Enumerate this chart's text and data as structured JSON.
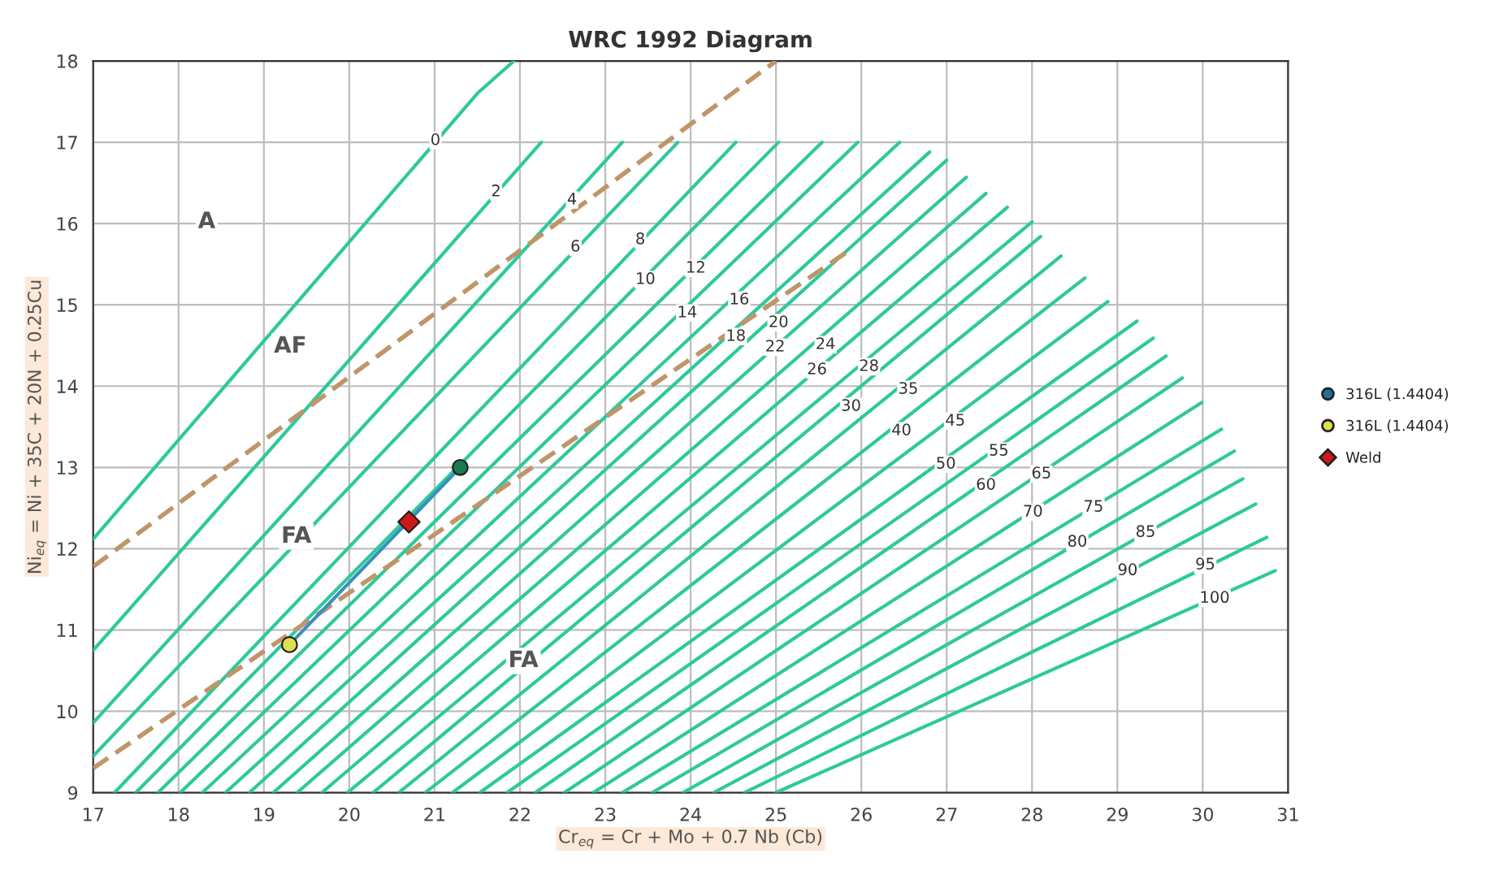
{
  "chart_data": {
    "type": "line",
    "title": "WRC 1992 Diagram",
    "xlabel": "Cr$_{eq}$ = Cr + Mo + 0.7 Nb (Cb)",
    "ylabel": "Ni$_{eq}$ = Ni + 35C + 20N + 0.25Cu",
    "xlim": [
      17,
      31
    ],
    "ylim": [
      9,
      18
    ],
    "xticks": [
      17,
      18,
      19,
      20,
      21,
      22,
      23,
      24,
      25,
      26,
      27,
      28,
      29,
      30,
      31
    ],
    "yticks": [
      9,
      10,
      11,
      12,
      13,
      14,
      15,
      16,
      17,
      18
    ],
    "grid": true,
    "legend": "right",
    "series": [
      {
        "type": "line",
        "color": "#2ec99a",
        "x": [
          17,
          21.5,
          21.93
        ],
        "values": [
          12.12,
          17.6,
          18
        ]
      },
      {
        "type": "line",
        "color": "#2ec99a",
        "x": [
          17,
          22.25
        ],
        "values": [
          10.75,
          17
        ]
      },
      {
        "type": "line",
        "color": "#2ec99a",
        "x": [
          17,
          23.2
        ],
        "values": [
          9.86,
          17
        ]
      },
      {
        "type": "line",
        "color": "#2ec99a",
        "x": [
          17,
          23.85
        ],
        "values": [
          9.45,
          17
        ]
      },
      {
        "type": "line",
        "color": "#2ec99a",
        "x": [
          17.25,
          24.53
        ],
        "values": [
          9,
          17
        ]
      },
      {
        "type": "line",
        "color": "#2ec99a",
        "x": [
          17.5,
          25.03
        ],
        "values": [
          9,
          17
        ]
      },
      {
        "type": "line",
        "color": "#2ec99a",
        "x": [
          17.76,
          25.54
        ],
        "values": [
          9,
          17
        ]
      },
      {
        "type": "line",
        "color": "#2ec99a",
        "x": [
          18.02,
          25.96
        ],
        "values": [
          9,
          17
        ]
      },
      {
        "type": "line",
        "color": "#2ec99a",
        "x": [
          18.28,
          26.45
        ],
        "values": [
          9,
          17
        ]
      },
      {
        "type": "line",
        "color": "#2ec99a",
        "x": [
          18.55,
          26.8
        ],
        "values": [
          9,
          16.88
        ]
      },
      {
        "type": "line",
        "color": "#2ec99a",
        "x": [
          18.83,
          27.0
        ],
        "values": [
          9,
          16.78
        ]
      },
      {
        "type": "line",
        "color": "#2ec99a",
        "x": [
          19.11,
          27.23
        ],
        "values": [
          9,
          16.57
        ]
      },
      {
        "type": "line",
        "color": "#2ec99a",
        "x": [
          19.39,
          27.46
        ],
        "values": [
          9,
          16.37
        ]
      },
      {
        "type": "line",
        "color": "#2ec99a",
        "x": [
          19.68,
          27.71
        ],
        "values": [
          9,
          16.2
        ]
      },
      {
        "type": "line",
        "color": "#2ec99a",
        "x": [
          19.98,
          28.0
        ],
        "values": [
          9,
          16.02
        ]
      },
      {
        "type": "line",
        "color": "#2ec99a",
        "x": [
          20.28,
          28.1
        ],
        "values": [
          9,
          15.84
        ]
      },
      {
        "type": "line",
        "color": "#2ec99a",
        "x": [
          20.58,
          28.34
        ],
        "values": [
          9,
          15.6
        ]
      },
      {
        "type": "line",
        "color": "#2ec99a",
        "x": [
          20.89,
          28.62
        ],
        "values": [
          9,
          15.33
        ]
      },
      {
        "type": "line",
        "color": "#2ec99a",
        "x": [
          21.21,
          28.89
        ],
        "values": [
          9,
          15.04
        ]
      },
      {
        "type": "line",
        "color": "#2ec99a",
        "x": [
          21.53,
          29.23
        ],
        "values": [
          9,
          14.8
        ]
      },
      {
        "type": "line",
        "color": "#2ec99a",
        "x": [
          21.85,
          29.42
        ],
        "values": [
          9,
          14.59
        ]
      },
      {
        "type": "line",
        "color": "#2ec99a",
        "x": [
          22.18,
          29.57
        ],
        "values": [
          9,
          14.37
        ]
      },
      {
        "type": "line",
        "color": "#2ec99a",
        "x": [
          22.52,
          29.76
        ],
        "values": [
          9,
          14.1
        ]
      },
      {
        "type": "line",
        "color": "#2ec99a",
        "x": [
          22.86,
          29.99
        ],
        "values": [
          9,
          13.8
        ]
      },
      {
        "type": "line",
        "color": "#2ec99a",
        "x": [
          23.2,
          30.22
        ],
        "values": [
          9,
          13.47
        ]
      },
      {
        "type": "line",
        "color": "#2ec99a",
        "x": [
          23.55,
          30.37
        ],
        "values": [
          9,
          13.2
        ]
      },
      {
        "type": "line",
        "color": "#2ec99a",
        "x": [
          23.91,
          30.47
        ],
        "values": [
          9,
          12.86
        ]
      },
      {
        "type": "line",
        "color": "#2ec99a",
        "x": [
          24.27,
          30.62
        ],
        "values": [
          9,
          12.55
        ]
      },
      {
        "type": "line",
        "color": "#2ec99a",
        "x": [
          24.63,
          30.75
        ],
        "values": [
          9,
          12.14
        ]
      },
      {
        "type": "line",
        "color": "#2ec99a",
        "x": [
          25.0,
          30.85
        ],
        "values": [
          9,
          11.73
        ]
      },
      {
        "type": "line",
        "color": "#c0956a",
        "line_style": "dashed",
        "x": [
          17,
          25
        ],
        "values": [
          11.78,
          18
        ]
      },
      {
        "type": "line",
        "color": "#c0956a",
        "line_style": "dashed",
        "x": [
          17,
          25.9
        ],
        "values": [
          9.3,
          15.7
        ]
      },
      {
        "type": "line",
        "color": "#3a8fc0",
        "x": [
          19.3,
          21.3
        ],
        "values": [
          10.82,
          13.0
        ]
      },
      {
        "type": "scatter",
        "name": "316L (1.4404)",
        "color": "#1f6fa0",
        "marker": "circle",
        "values": [
          null
        ]
      },
      {
        "type": "scatter",
        "name": "316L (1.4404)",
        "color": "#e0e050",
        "marker": "circle",
        "x": [
          19.3
        ],
        "values": [
          10.82
        ]
      },
      {
        "type": "scatter",
        "color": "#1a7a50",
        "marker": "circle",
        "x": [
          21.3
        ],
        "values": [
          13.0
        ]
      },
      {
        "type": "scatter",
        "name": "Weld",
        "color": "#d01818",
        "marker": "diamond",
        "x": [
          20.7
        ],
        "values": [
          12.33
        ]
      }
    ],
    "annotations": [
      "A",
      "AF",
      "FA",
      "FA",
      {
        "text": "0",
        "x": 21.01,
        "y": 17.02
      },
      {
        "text": "2",
        "x": 21.72,
        "y": 16.39
      },
      {
        "text": "4",
        "x": 22.61,
        "y": 16.29
      },
      {
        "text": "6",
        "x": 22.65,
        "y": 15.71
      },
      {
        "text": "8",
        "x": 23.41,
        "y": 15.8
      },
      {
        "text": "10",
        "x": 23.47,
        "y": 15.31
      },
      {
        "text": "12",
        "x": 24.06,
        "y": 15.45
      },
      {
        "text": "14",
        "x": 23.96,
        "y": 14.9
      },
      {
        "text": "16",
        "x": 24.57,
        "y": 15.06
      },
      {
        "text": "18",
        "x": 24.53,
        "y": 14.61
      },
      {
        "text": "20",
        "x": 25.03,
        "y": 14.78
      },
      {
        "text": "22",
        "x": 24.99,
        "y": 14.48
      },
      {
        "text": "24",
        "x": 25.58,
        "y": 14.51
      },
      {
        "text": "26",
        "x": 25.48,
        "y": 14.2
      },
      {
        "text": "28",
        "x": 26.09,
        "y": 14.24
      },
      {
        "text": "30",
        "x": 25.88,
        "y": 13.75
      },
      {
        "text": "35",
        "x": 26.55,
        "y": 13.96
      },
      {
        "text": "40",
        "x": 26.47,
        "y": 13.45
      },
      {
        "text": "45",
        "x": 27.1,
        "y": 13.57
      },
      {
        "text": "50",
        "x": 26.99,
        "y": 13.04
      },
      {
        "text": "55",
        "x": 27.61,
        "y": 13.2
      },
      {
        "text": "60",
        "x": 27.46,
        "y": 12.78
      },
      {
        "text": "65",
        "x": 28.11,
        "y": 12.92
      },
      {
        "text": "70",
        "x": 28.01,
        "y": 12.45
      },
      {
        "text": "75",
        "x": 28.72,
        "y": 12.51
      },
      {
        "text": "80",
        "x": 28.53,
        "y": 12.08
      },
      {
        "text": "85",
        "x": 29.33,
        "y": 12.2
      },
      {
        "text": "90",
        "x": 29.12,
        "y": 11.73
      },
      {
        "text": "95",
        "x": 30.03,
        "y": 11.8
      },
      {
        "text": "100",
        "x": 30.14,
        "y": 11.39
      }
    ]
  }
}
